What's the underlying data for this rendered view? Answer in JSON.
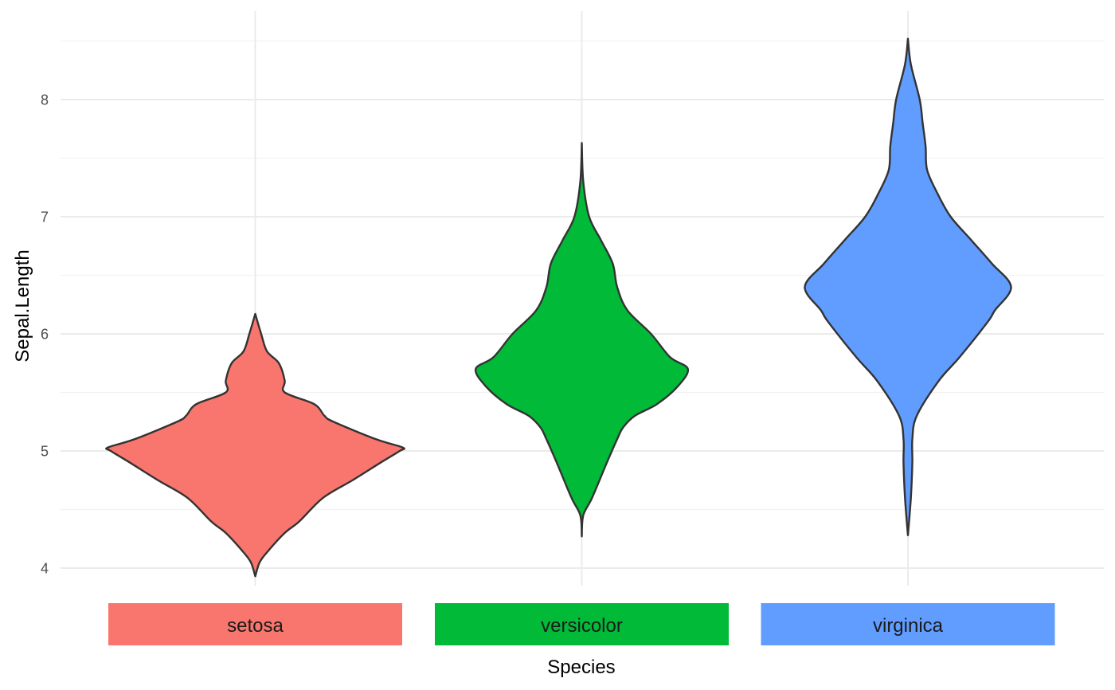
{
  "chart_data": {
    "type": "violin",
    "title": "",
    "xlabel": "Species",
    "ylabel": "Sepal.Length",
    "ylim": [
      3.93,
      8.62
    ],
    "y_ticks": [
      4,
      5,
      6,
      7,
      8
    ],
    "y_tick_labels": [
      "4",
      "5",
      "6",
      "7",
      "8"
    ],
    "grid": true,
    "legend": "none",
    "categories": [
      "setosa",
      "versicolor",
      "virginica"
    ],
    "series": [
      {
        "category": "setosa",
        "color": "#F8766D",
        "min": 3.93,
        "max": 6.17,
        "density_profile": [
          [
            3.93,
            0.0
          ],
          [
            4.05,
            0.03
          ],
          [
            4.15,
            0.09
          ],
          [
            4.3,
            0.2
          ],
          [
            4.4,
            0.3
          ],
          [
            4.6,
            0.46
          ],
          [
            4.75,
            0.66
          ],
          [
            4.9,
            0.85
          ],
          [
            5.0,
            0.98
          ],
          [
            5.03,
            1.0
          ],
          [
            5.1,
            0.82
          ],
          [
            5.25,
            0.53
          ],
          [
            5.3,
            0.47
          ],
          [
            5.4,
            0.4
          ],
          [
            5.5,
            0.2
          ],
          [
            5.6,
            0.2
          ],
          [
            5.75,
            0.16
          ],
          [
            5.85,
            0.08
          ],
          [
            6.0,
            0.04
          ],
          [
            6.17,
            0.0
          ]
        ]
      },
      {
        "category": "versicolor",
        "color": "#00BA38",
        "min": 4.27,
        "max": 7.63,
        "density_profile": [
          [
            4.27,
            0.0
          ],
          [
            4.45,
            0.01
          ],
          [
            4.6,
            0.07
          ],
          [
            4.9,
            0.17
          ],
          [
            5.1,
            0.24
          ],
          [
            5.2,
            0.28
          ],
          [
            5.3,
            0.36
          ],
          [
            5.4,
            0.51
          ],
          [
            5.55,
            0.65
          ],
          [
            5.7,
            0.72
          ],
          [
            5.8,
            0.6
          ],
          [
            6.0,
            0.47
          ],
          [
            6.2,
            0.31
          ],
          [
            6.4,
            0.24
          ],
          [
            6.6,
            0.21
          ],
          [
            6.8,
            0.13
          ],
          [
            7.0,
            0.05
          ],
          [
            7.3,
            0.01
          ],
          [
            7.63,
            0.0
          ]
        ]
      },
      {
        "category": "virginica",
        "color": "#619CFF",
        "min": 4.28,
        "max": 8.52,
        "density_profile": [
          [
            4.28,
            0.0
          ],
          [
            4.6,
            0.02
          ],
          [
            4.9,
            0.03
          ],
          [
            5.1,
            0.03
          ],
          [
            5.3,
            0.06
          ],
          [
            5.6,
            0.21
          ],
          [
            5.8,
            0.35
          ],
          [
            6.1,
            0.54
          ],
          [
            6.2,
            0.59
          ],
          [
            6.4,
            0.7
          ],
          [
            6.6,
            0.57
          ],
          [
            6.8,
            0.43
          ],
          [
            7.0,
            0.29
          ],
          [
            7.2,
            0.2
          ],
          [
            7.4,
            0.13
          ],
          [
            7.6,
            0.12
          ],
          [
            7.8,
            0.1
          ],
          [
            8.0,
            0.08
          ],
          [
            8.3,
            0.02
          ],
          [
            8.52,
            0.0
          ]
        ]
      }
    ]
  }
}
